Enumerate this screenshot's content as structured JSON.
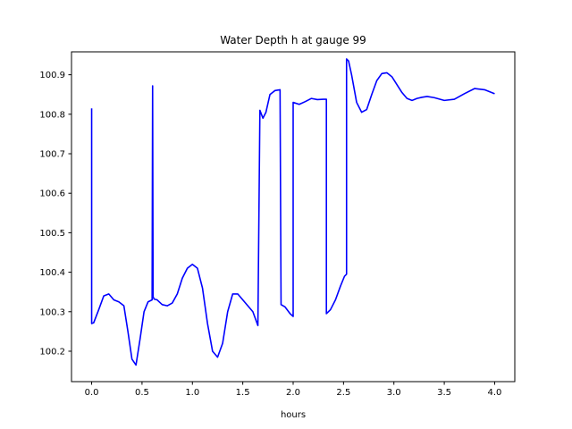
{
  "chart_data": {
    "type": "line",
    "title": "Water Depth h at gauge 99",
    "xlabel": "hours",
    "ylabel": "",
    "xlim": [
      -0.2,
      4.2
    ],
    "ylim": [
      100.123,
      100.958
    ],
    "grid": false,
    "x_ticks": [
      0.0,
      0.5,
      1.0,
      1.5,
      2.0,
      2.5,
      3.0,
      3.5,
      4.0
    ],
    "x_tick_labels": [
      "0.0",
      "0.5",
      "1.0",
      "1.5",
      "2.0",
      "2.5",
      "3.0",
      "3.5",
      "4.0"
    ],
    "y_ticks": [
      100.2,
      100.3,
      100.4,
      100.5,
      100.6,
      100.7,
      100.8,
      100.9
    ],
    "y_tick_labels": [
      "100.2",
      "100.3",
      "100.4",
      "100.5",
      "100.6",
      "100.7",
      "100.8",
      "100.9"
    ],
    "series": [
      {
        "color": "#0000ff",
        "x": [
          0.0,
          0.0,
          0.02,
          0.07,
          0.12,
          0.17,
          0.22,
          0.27,
          0.32,
          0.36,
          0.4,
          0.44,
          0.48,
          0.52,
          0.56,
          0.6,
          0.605,
          0.61,
          0.62,
          0.65,
          0.7,
          0.75,
          0.8,
          0.85,
          0.9,
          0.95,
          1.0,
          1.05,
          1.1,
          1.15,
          1.2,
          1.25,
          1.3,
          1.35,
          1.4,
          1.45,
          1.5,
          1.55,
          1.6,
          1.65,
          1.67,
          1.67,
          1.7,
          1.73,
          1.77,
          1.82,
          1.87,
          1.88,
          1.88,
          1.92,
          1.97,
          2.0,
          2.0,
          2.06,
          2.12,
          2.18,
          2.24,
          2.3,
          2.33,
          2.33,
          2.37,
          2.42,
          2.47,
          2.51,
          2.53,
          2.53,
          2.55,
          2.58,
          2.63,
          2.68,
          2.73,
          2.78,
          2.83,
          2.88,
          2.93,
          2.98,
          3.03,
          3.08,
          3.13,
          3.18,
          3.23,
          3.28,
          3.33,
          3.4,
          3.5,
          3.6,
          3.7,
          3.8,
          3.9,
          4.0
        ],
        "y": [
          100.815,
          100.27,
          100.272,
          100.305,
          100.34,
          100.345,
          100.33,
          100.325,
          100.315,
          100.25,
          100.18,
          100.165,
          100.23,
          100.3,
          100.325,
          100.33,
          100.872,
          100.338,
          100.332,
          100.33,
          100.318,
          100.315,
          100.322,
          100.345,
          100.385,
          100.41,
          100.42,
          100.41,
          100.36,
          100.27,
          100.2,
          100.185,
          100.22,
          100.3,
          100.345,
          100.345,
          100.33,
          100.315,
          100.3,
          100.265,
          100.81,
          100.81,
          100.79,
          100.805,
          100.85,
          100.86,
          100.862,
          100.318,
          100.318,
          100.312,
          100.295,
          100.288,
          100.83,
          100.825,
          100.832,
          100.84,
          100.837,
          100.838,
          100.838,
          100.295,
          100.305,
          100.33,
          100.365,
          100.39,
          100.395,
          100.94,
          100.935,
          100.9,
          100.83,
          100.805,
          100.812,
          100.85,
          100.885,
          100.903,
          100.905,
          100.895,
          100.875,
          100.855,
          100.84,
          100.835,
          100.84,
          100.843,
          100.845,
          100.842,
          100.835,
          100.838,
          100.852,
          100.865,
          100.862,
          100.852
        ]
      }
    ]
  }
}
